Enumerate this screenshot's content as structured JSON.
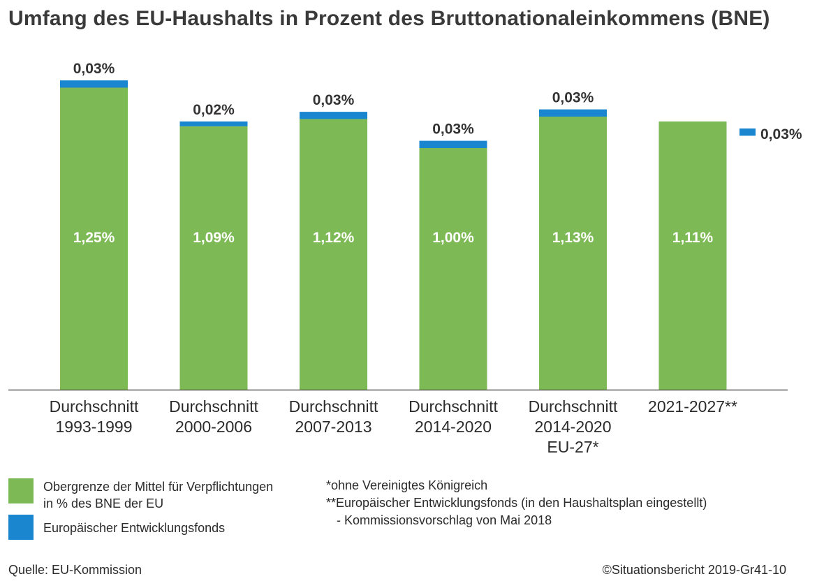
{
  "title": "Umfang des EU-Haushalts in Prozent des Bruttonationaleinkommens (BNE)",
  "colors": {
    "green": "#7dba55",
    "blue": "#1a86cf",
    "text": "#2b2b2b"
  },
  "chart_data": {
    "type": "bar",
    "stacked": true,
    "categories": [
      [
        "Durchschnitt",
        "1993-1999"
      ],
      [
        "Durchschnitt",
        "2000-2006"
      ],
      [
        "Durchschnitt",
        "2007-2013"
      ],
      [
        "Durchschnitt",
        "2014-2020"
      ],
      [
        "Durchschnitt",
        "2014-2020",
        "EU-27*"
      ],
      [
        "2021-2027**"
      ]
    ],
    "series": [
      {
        "name": "Obergrenze der Mittel für Verpflichtungen in % des BNE der EU",
        "values": [
          1.25,
          1.09,
          1.12,
          1.0,
          1.13,
          1.11
        ],
        "labels": [
          "1,25%",
          "1,09%",
          "1,12%",
          "1,00%",
          "1,13%",
          "1,11%"
        ]
      },
      {
        "name": "Europäischer Entwicklungsfonds",
        "values": [
          0.03,
          0.02,
          0.03,
          0.03,
          0.03,
          0.03
        ],
        "labels": [
          "0,03%",
          "0,02%",
          "0,03%",
          "0,03%",
          "0,03%",
          "0,03%"
        ]
      }
    ],
    "xlabel": "",
    "ylabel": "",
    "grid": false,
    "legend_placement": "bottom-left"
  },
  "legend": [
    {
      "lines": [
        "Obergrenze der Mittel für Verpflichtungen",
        "in % des BNE der EU"
      ]
    },
    {
      "lines": [
        "Europäischer Entwicklungsfonds"
      ]
    }
  ],
  "notes": [
    "*ohne Vereinigtes Königreich",
    "**Europäischer Entwicklungsfonds (in den Haushaltsplan eingestellt)",
    "   - Kommissionsvorschlag von Mai 2018"
  ],
  "source": "Quelle: EU-Kommission",
  "credit": "©Situationsbericht 2019-Gr41-10"
}
